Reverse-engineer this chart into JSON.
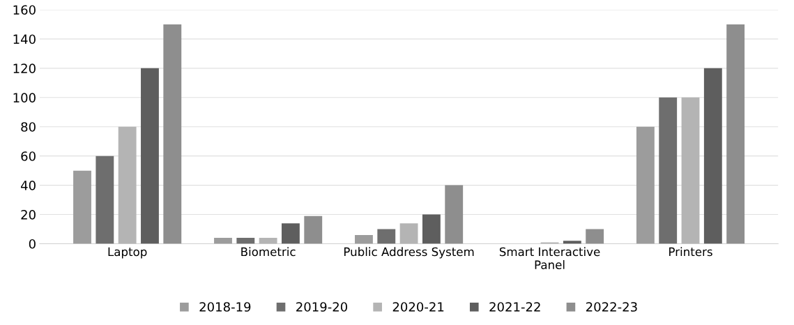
{
  "chart_data": {
    "type": "bar",
    "categories": [
      "Laptop",
      "Biometric",
      "Public Address System",
      "Smart Interactive\nPanel",
      "Printers"
    ],
    "series": [
      {
        "name": "2018-19",
        "color": "#9c9c9c",
        "values": [
          50,
          4,
          6,
          0,
          80
        ]
      },
      {
        "name": "2019-20",
        "color": "#6e6e6e",
        "values": [
          60,
          4,
          10,
          0,
          100
        ]
      },
      {
        "name": "2020-21",
        "color": "#b4b4b4",
        "values": [
          80,
          4,
          14,
          1,
          100
        ]
      },
      {
        "name": "2021-22",
        "color": "#5e5e5e",
        "values": [
          120,
          14,
          20,
          2,
          120
        ]
      },
      {
        "name": "2022-23",
        "color": "#8e8e8e",
        "values": [
          150,
          19,
          40,
          10,
          150
        ]
      }
    ],
    "ylim": [
      0,
      160
    ],
    "yticks": [
      0,
      20,
      40,
      60,
      80,
      100,
      120,
      140,
      160
    ],
    "grid": "y",
    "legend": "bottom"
  }
}
